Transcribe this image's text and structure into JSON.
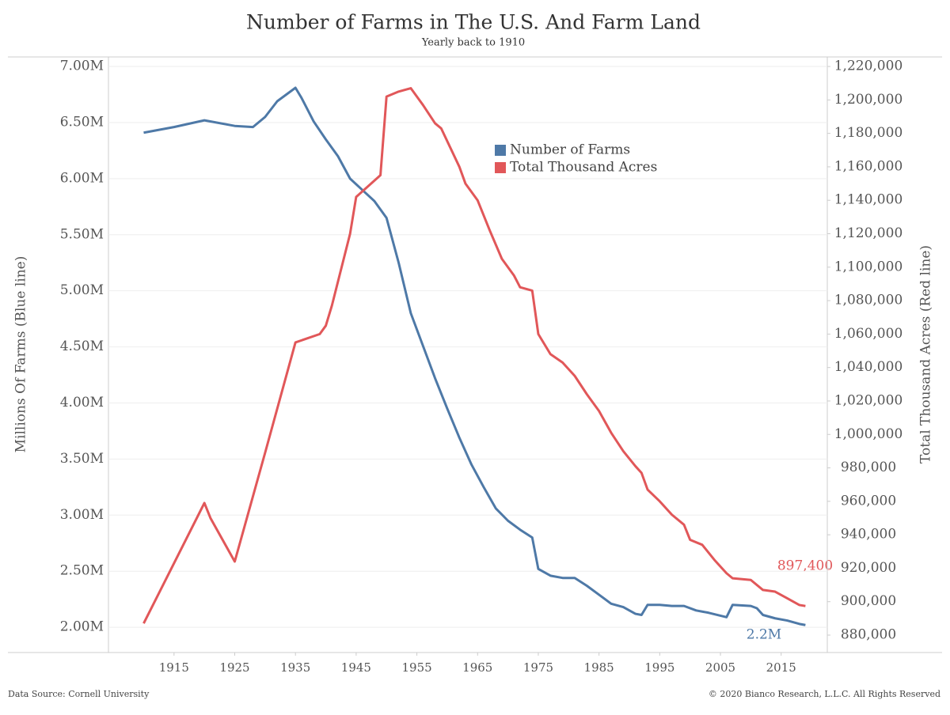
{
  "chart_data": {
    "type": "line",
    "title": "Number of Farms in The U.S. And Farm Land",
    "subtitle": "Yearly back to 1910",
    "ylabel": "Millions Of Farms (Blue line)",
    "y2label": "Total Thousand Acres (Red line)",
    "source": "Data Source: Cornell University",
    "copyright": "© 2020 Bianco Research, L.L.C. All Rights Reserved",
    "annotations": [
      "897,400",
      "2.2M"
    ],
    "legend": "upper center",
    "grid": true,
    "xlim": [
      1904.2,
      2022.6
    ],
    "xticks": [
      1915,
      1925,
      1935,
      1945,
      1955,
      1965,
      1975,
      1985,
      1995,
      2005,
      2015
    ],
    "ylim": [
      1.775,
      7.085
    ],
    "yticks": [
      {
        "value": 2,
        "label": "2.00M"
      },
      {
        "value": 2.5,
        "label": "2.50M"
      },
      {
        "value": 3,
        "label": "3.00M"
      },
      {
        "value": 3.5,
        "label": "3.50M"
      },
      {
        "value": 4,
        "label": "4.00M"
      },
      {
        "value": 4.5,
        "label": "4.50M"
      },
      {
        "value": 5,
        "label": "5.00M"
      },
      {
        "value": 5.5,
        "label": "5.50M"
      },
      {
        "value": 6,
        "label": "6.00M"
      },
      {
        "value": 6.5,
        "label": "6.50M"
      },
      {
        "value": 7,
        "label": "7.00M"
      }
    ],
    "y2lim": [
      869600,
      1225700
    ],
    "y2ticks": [
      {
        "value": 880000,
        "label": "880,000"
      },
      {
        "value": 900000,
        "label": "900,000"
      },
      {
        "value": 920000,
        "label": "920,000"
      },
      {
        "value": 940000,
        "label": "940,000"
      },
      {
        "value": 960000,
        "label": "960,000"
      },
      {
        "value": 980000,
        "label": "980,000"
      },
      {
        "value": 1000000,
        "label": "1,000,000"
      },
      {
        "value": 1020000,
        "label": "1,020,000"
      },
      {
        "value": 1040000,
        "label": "1,040,000"
      },
      {
        "value": 1060000,
        "label": "1,060,000"
      },
      {
        "value": 1080000,
        "label": "1,080,000"
      },
      {
        "value": 1100000,
        "label": "1,100,000"
      },
      {
        "value": 1120000,
        "label": "1,120,000"
      },
      {
        "value": 1140000,
        "label": "1,140,000"
      },
      {
        "value": 1160000,
        "label": "1,160,000"
      },
      {
        "value": 1180000,
        "label": "1,180,000"
      },
      {
        "value": 1200000,
        "label": "1,200,000"
      },
      {
        "value": 1220000,
        "label": "1,220,000"
      }
    ],
    "series": [
      {
        "name": "Number of Farms",
        "color": "#4e79a7",
        "x": [
          1910,
          1915,
          1920,
          1925,
          1928,
          1930,
          1932,
          1935,
          1936,
          1938,
          1940,
          1942,
          1944,
          1946,
          1948,
          1950,
          1952,
          1954,
          1956,
          1958,
          1960,
          1962,
          1964,
          1966,
          1968,
          1970,
          1972,
          1974,
          1975,
          1977,
          1979,
          1981,
          1983,
          1985,
          1987,
          1989,
          1991,
          1992,
          1993,
          1995,
          1997,
          1999,
          2001,
          2003,
          2006,
          2007,
          2010,
          2011,
          2012,
          2014,
          2016,
          2018,
          2019
        ],
        "values": [
          6.41,
          6.46,
          6.52,
          6.47,
          6.46,
          6.55,
          6.69,
          6.81,
          6.72,
          6.51,
          6.35,
          6.2,
          6.0,
          5.9,
          5.8,
          5.65,
          5.25,
          4.8,
          4.51,
          4.22,
          3.95,
          3.69,
          3.45,
          3.25,
          3.06,
          2.95,
          2.87,
          2.8,
          2.52,
          2.46,
          2.44,
          2.44,
          2.37,
          2.29,
          2.21,
          2.18,
          2.12,
          2.11,
          2.2,
          2.2,
          2.19,
          2.19,
          2.15,
          2.13,
          2.09,
          2.2,
          2.19,
          2.17,
          2.11,
          2.08,
          2.06,
          2.03,
          2.02
        ]
      },
      {
        "name": "Total Thousand Acres",
        "color": "#e15759",
        "axis": "y2",
        "x": [
          1910,
          1920,
          1921,
          1925,
          1930,
          1935,
          1939,
          1940,
          1941,
          1944,
          1945,
          1949,
          1950,
          1952,
          1954,
          1956,
          1958,
          1959,
          1962,
          1963,
          1965,
          1967,
          1969,
          1971,
          1972,
          1974,
          1975,
          1977,
          1979,
          1981,
          1983,
          1985,
          1987,
          1989,
          1991,
          1992,
          1993,
          1995,
          1997,
          1999,
          2000,
          2002,
          2004,
          2006,
          2007,
          2010,
          2012,
          2014,
          2016,
          2017,
          2018,
          2019
        ],
        "values": [
          887000,
          959000,
          950000,
          924000,
          989000,
          1055000,
          1060000,
          1065000,
          1077000,
          1120000,
          1142000,
          1155000,
          1202000,
          1205000,
          1207000,
          1197000,
          1186000,
          1183000,
          1160000,
          1150000,
          1140000,
          1122000,
          1105000,
          1095000,
          1088000,
          1086000,
          1060000,
          1048000,
          1043000,
          1035000,
          1024000,
          1014000,
          1001000,
          990000,
          981000,
          977000,
          967000,
          960000,
          952000,
          946000,
          937000,
          934000,
          925000,
          917000,
          914000,
          913000,
          907000,
          906000,
          902000,
          900000,
          898000,
          897400
        ]
      }
    ]
  }
}
